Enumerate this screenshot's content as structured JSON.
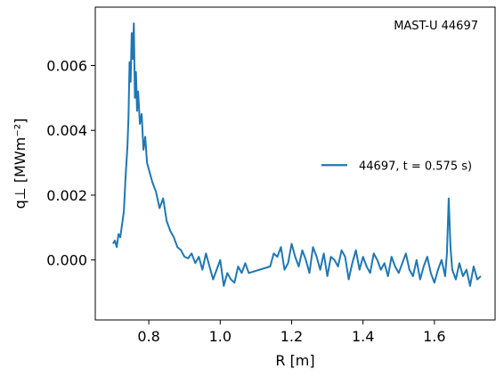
{
  "chart_data": {
    "type": "line",
    "annotation": "MAST-U 44697",
    "xlabel": "R [m]",
    "ylabel": "q⊥ [MWm⁻²]",
    "xlim": [
      0.65,
      1.77
    ],
    "ylim": [
      -0.00185,
      0.0078
    ],
    "xticks": [
      0.8,
      1.0,
      1.2,
      1.4,
      1.6
    ],
    "xtick_labels": [
      "0.8",
      "1.0",
      "1.2",
      "1.4",
      "1.6"
    ],
    "yticks": [
      0.0,
      0.002,
      0.004,
      0.006
    ],
    "ytick_labels": [
      "0.000",
      "0.002",
      "0.004",
      "0.006"
    ],
    "legend_position": "center-right",
    "series": [
      {
        "name": "44697, t = 0.575 s)",
        "color": "#1f77b4",
        "x": [
          0.7,
          0.705,
          0.71,
          0.715,
          0.72,
          0.725,
          0.73,
          0.735,
          0.74,
          0.743,
          0.746,
          0.749,
          0.752,
          0.755,
          0.758,
          0.761,
          0.764,
          0.767,
          0.77,
          0.775,
          0.78,
          0.785,
          0.79,
          0.795,
          0.8,
          0.81,
          0.82,
          0.83,
          0.84,
          0.85,
          0.86,
          0.87,
          0.88,
          0.89,
          0.9,
          0.91,
          0.92,
          0.93,
          0.94,
          0.95,
          0.96,
          0.97,
          0.98,
          0.99,
          1.0,
          1.01,
          1.02,
          1.03,
          1.04,
          1.05,
          1.06,
          1.07,
          1.08,
          1.14,
          1.15,
          1.16,
          1.17,
          1.18,
          1.19,
          1.2,
          1.21,
          1.22,
          1.23,
          1.24,
          1.25,
          1.26,
          1.27,
          1.28,
          1.29,
          1.3,
          1.31,
          1.32,
          1.33,
          1.34,
          1.35,
          1.36,
          1.37,
          1.38,
          1.39,
          1.4,
          1.41,
          1.42,
          1.43,
          1.44,
          1.45,
          1.46,
          1.47,
          1.48,
          1.49,
          1.5,
          1.51,
          1.52,
          1.53,
          1.54,
          1.55,
          1.56,
          1.57,
          1.58,
          1.59,
          1.6,
          1.61,
          1.62,
          1.63,
          1.635,
          1.64,
          1.645,
          1.65,
          1.66,
          1.67,
          1.68,
          1.69,
          1.7,
          1.71,
          1.72,
          1.73
        ],
        "y": [
          0.0005,
          0.0006,
          0.0004,
          0.0008,
          0.0007,
          0.0011,
          0.0015,
          0.0026,
          0.0035,
          0.0044,
          0.0061,
          0.0055,
          0.007,
          0.0062,
          0.0073,
          0.005,
          0.0058,
          0.0046,
          0.0052,
          0.0042,
          0.0045,
          0.0034,
          0.0038,
          0.003,
          0.0028,
          0.0024,
          0.0021,
          0.0016,
          0.0019,
          0.0012,
          0.0009,
          0.0007,
          0.0004,
          0.0003,
          0.0001,
          5e-05,
          0.0002,
          -0.0001,
          0.0001,
          -0.0003,
          0.0002,
          -0.0002,
          -0.0006,
          -0.0003,
          0.0,
          -0.0008,
          -0.0004,
          -0.0006,
          -0.0007,
          -0.0002,
          -0.0004,
          -0.0001,
          -0.0004,
          -0.0002,
          0.0002,
          0.0001,
          0.0004,
          -0.0003,
          -0.0001,
          0.0005,
          0.0001,
          -0.0002,
          0.0003,
          0.0,
          -0.0004,
          0.0004,
          0.0001,
          -0.0003,
          0.0002,
          -0.0005,
          0.0001,
          0.0,
          -0.0002,
          0.0003,
          0.0001,
          -0.0006,
          -0.0001,
          0.0003,
          -0.0003,
          0.0001,
          -0.0002,
          -0.0004,
          0.0002,
          0.0,
          -0.0003,
          -0.0001,
          -0.0005,
          0.0001,
          -0.0002,
          -0.0004,
          -0.0001,
          0.0002,
          -0.0003,
          -0.0005,
          0.0,
          -0.0006,
          -0.0002,
          0.0001,
          -0.0004,
          -0.0007,
          -0.0003,
          0.0,
          -0.0005,
          0.0002,
          0.0019,
          0.0004,
          -0.0003,
          -0.0006,
          -0.0001,
          -0.0005,
          -0.0003,
          -0.0008,
          -0.0002,
          -0.0006,
          -0.0005
        ]
      }
    ]
  }
}
